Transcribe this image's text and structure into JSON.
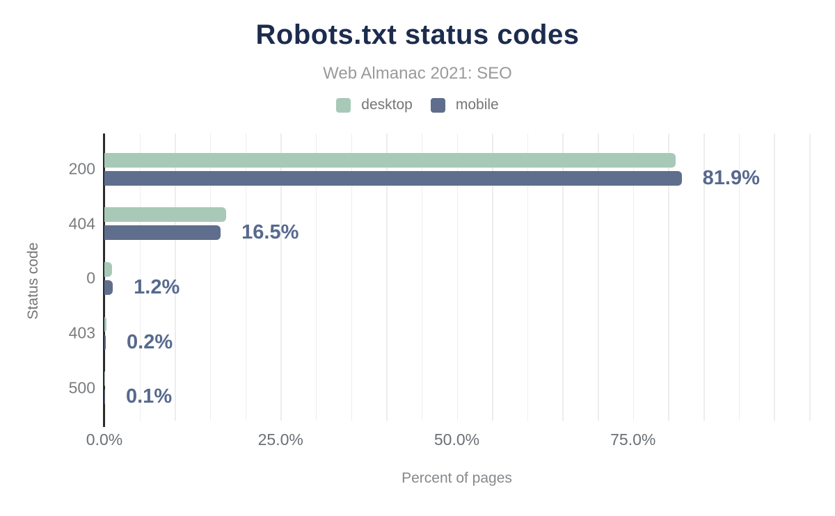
{
  "chart_data": {
    "type": "bar",
    "orientation": "horizontal",
    "title": "Robots.txt status codes",
    "subtitle": "Web Almanac 2021: SEO",
    "categories": [
      "200",
      "404",
      "0",
      "403",
      "500"
    ],
    "series": [
      {
        "name": "desktop",
        "color": "#a8c9b8",
        "values": [
          81.0,
          17.3,
          1.1,
          0.3,
          0.1
        ]
      },
      {
        "name": "mobile",
        "color": "#5f6e8d",
        "values": [
          81.9,
          16.5,
          1.2,
          0.2,
          0.1
        ]
      }
    ],
    "value_labels": [
      "81.9%",
      "16.5%",
      "1.2%",
      "0.2%",
      "0.1%"
    ],
    "value_label_series": "mobile",
    "xlabel": "Percent of pages",
    "ylabel": "Status code",
    "xlim": [
      0,
      100
    ],
    "x_ticks": [
      0,
      25,
      50,
      75
    ],
    "x_tick_labels": [
      "0.0%",
      "25.0%",
      "50.0%",
      "75.0%"
    ],
    "gridline_step": 5,
    "grid": true,
    "legend_position": "top"
  },
  "colors": {
    "title": "#1c2c4e",
    "subtitle": "#9a9a9a",
    "legend_text": "#757575",
    "desktop_series": "#a8c9b8",
    "mobile_series": "#5f6e8d",
    "value_label": "#57698d",
    "axis_line": "#2b2b2b",
    "gridline": "#ededed",
    "tick_text": "#6b7075",
    "background": "#ffffff"
  }
}
